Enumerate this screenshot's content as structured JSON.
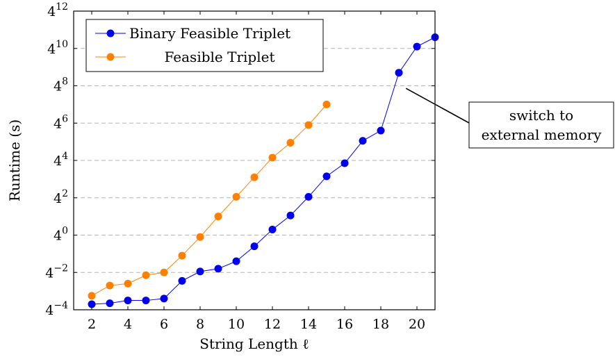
{
  "chart_data": {
    "type": "line",
    "xlabel": "String Length ℓ",
    "ylabel": "Runtime (s)",
    "xlim": [
      1,
      21
    ],
    "xticks": [
      2,
      4,
      6,
      8,
      10,
      12,
      14,
      16,
      18,
      20
    ],
    "ylog_base": 4,
    "ylim_exponent": [
      -4,
      12
    ],
    "ytick_exponents": [
      -4,
      -2,
      0,
      2,
      4,
      6,
      8,
      10,
      12
    ],
    "ytick_base_label": "4",
    "ygrid": true,
    "legend_position": "top-left",
    "series": [
      {
        "name": "Binary Feasible Triplet",
        "color": "#0000ee",
        "x": [
          2,
          3,
          4,
          5,
          6,
          7,
          8,
          9,
          10,
          11,
          12,
          13,
          14,
          15,
          16,
          17,
          18,
          19,
          20,
          21
        ],
        "y_exponent": [
          -3.7,
          -3.65,
          -3.5,
          -3.5,
          -3.4,
          -2.45,
          -1.95,
          -1.8,
          -1.4,
          -0.6,
          0.3,
          1.05,
          2.05,
          3.15,
          3.85,
          5.05,
          5.6,
          8.7,
          10.1,
          10.6
        ]
      },
      {
        "name": "Feasible Triplet",
        "color": "#ff8000",
        "x": [
          2,
          3,
          4,
          5,
          6,
          7,
          8,
          9,
          10,
          11,
          12,
          13,
          14,
          15
        ],
        "y_exponent": [
          -3.25,
          -2.7,
          -2.6,
          -2.15,
          -2.0,
          -1.1,
          -0.1,
          1.0,
          2.05,
          3.1,
          4.15,
          4.95,
          5.9,
          7.0
        ]
      }
    ],
    "annotation": {
      "lines": [
        "switch to",
        "external memory"
      ],
      "x": 19.2,
      "y_exponent": 7.9
    }
  }
}
